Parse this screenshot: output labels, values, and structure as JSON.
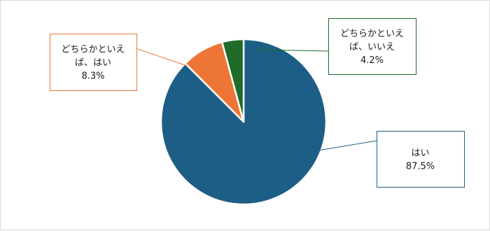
{
  "chart_data": {
    "type": "pie",
    "slices": [
      {
        "label_lines": [
          "はい"
        ],
        "value_text": "87.5%",
        "value": 87.5,
        "color": "#1c5e85"
      },
      {
        "label_lines": [
          "どちらかといえ",
          "ば、はい"
        ],
        "value_text": "8.3%",
        "value": 8.3,
        "color": "#ed7636"
      },
      {
        "label_lines": [
          "どちらかといえ",
          "ば、いいえ"
        ],
        "value_text": "4.2%",
        "value": 4.2,
        "color": "#1e6b2a"
      }
    ],
    "start_angle_deg": 0,
    "direction": "clockwise",
    "legend": "none",
    "label_style": "callout-boxes",
    "slice_border_color": "#ffffff"
  }
}
